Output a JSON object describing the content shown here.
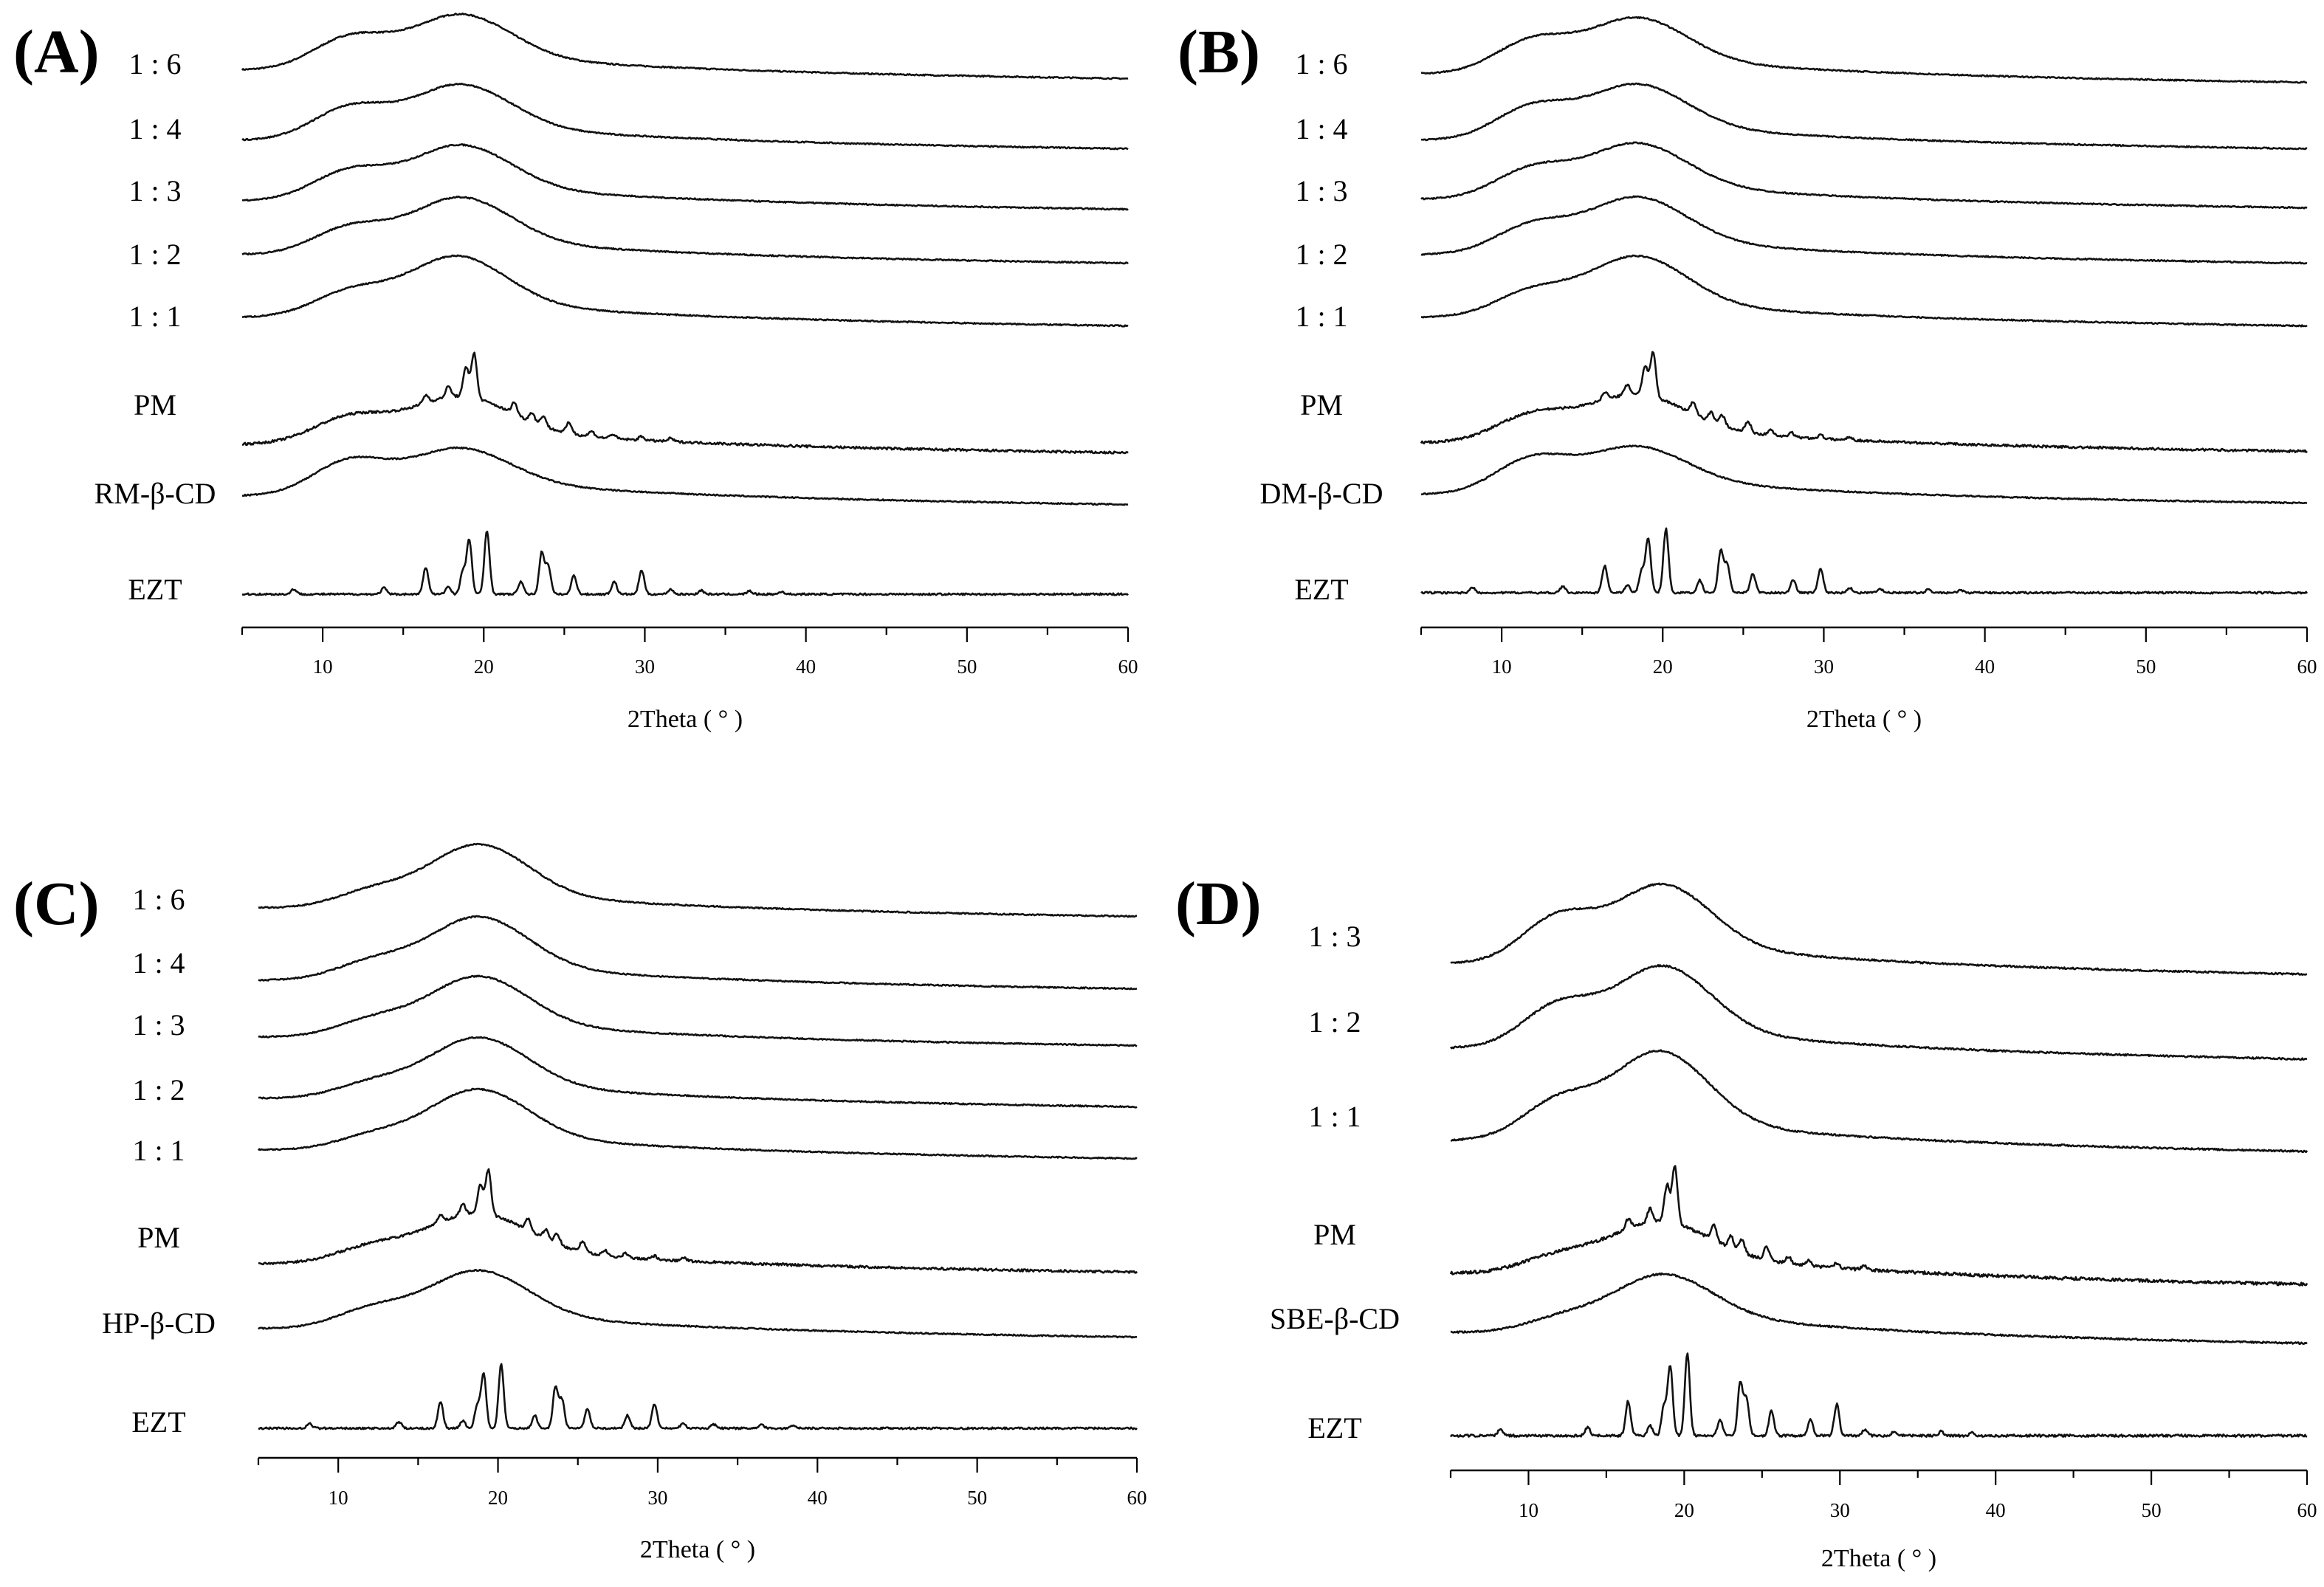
{
  "chart_data": [
    {
      "type": "line",
      "panel": "(A)",
      "xlabel": "2Theta ( ° )",
      "ylabel": "",
      "xlim": [
        5,
        60
      ],
      "xticks": [
        10,
        20,
        30,
        40,
        50,
        60
      ],
      "series": [
        {
          "name": "1 : 6",
          "profile": "amorphous",
          "peaks": [
            {
              "x": 11.6,
              "h": 0.55
            },
            {
              "x": 18.8,
              "h": 0.75
            }
          ]
        },
        {
          "name": "1 : 4",
          "profile": "amorphous",
          "peaks": [
            {
              "x": 11.6,
              "h": 0.55
            },
            {
              "x": 18.8,
              "h": 0.75
            }
          ]
        },
        {
          "name": "1 : 3",
          "profile": "amorphous",
          "peaks": [
            {
              "x": 11.6,
              "h": 0.5
            },
            {
              "x": 18.8,
              "h": 0.75
            }
          ]
        },
        {
          "name": "1 : 2",
          "profile": "amorphous",
          "peaks": [
            {
              "x": 11.6,
              "h": 0.45
            },
            {
              "x": 18.8,
              "h": 0.78
            }
          ]
        },
        {
          "name": "1 : 1",
          "profile": "amorphous",
          "peaks": [
            {
              "x": 11.6,
              "h": 0.42
            },
            {
              "x": 18.5,
              "h": 0.85
            }
          ]
        },
        {
          "name": "PM",
          "profile": "physical-mixture",
          "peaks": [
            {
              "x": 11.6,
              "h": 0.45
            },
            {
              "x": 18.8,
              "h": 0.6
            }
          ]
        },
        {
          "name": "RM-β-CD",
          "profile": "amorphous",
          "peaks": [
            {
              "x": 11.6,
              "h": 0.6
            },
            {
              "x": 18.8,
              "h": 0.6
            }
          ]
        },
        {
          "name": "EZT",
          "profile": "crystalline",
          "peaks": []
        }
      ]
    },
    {
      "type": "line",
      "panel": "(B)",
      "xlabel": "2Theta ( ° )",
      "ylabel": "",
      "xlim": [
        5,
        60
      ],
      "xticks": [
        10,
        20,
        30,
        40,
        50,
        60
      ],
      "series": [
        {
          "name": "1 : 6",
          "profile": "amorphous",
          "peaks": [
            {
              "x": 11.8,
              "h": 0.55
            },
            {
              "x": 18.6,
              "h": 0.75
            }
          ]
        },
        {
          "name": "1 : 4",
          "profile": "amorphous",
          "peaks": [
            {
              "x": 11.8,
              "h": 0.55
            },
            {
              "x": 18.6,
              "h": 0.75
            }
          ]
        },
        {
          "name": "1 : 3",
          "profile": "amorphous",
          "peaks": [
            {
              "x": 11.8,
              "h": 0.5
            },
            {
              "x": 18.6,
              "h": 0.75
            }
          ]
        },
        {
          "name": "1 : 2",
          "profile": "amorphous",
          "peaks": [
            {
              "x": 11.8,
              "h": 0.48
            },
            {
              "x": 18.6,
              "h": 0.78
            }
          ]
        },
        {
          "name": "1 : 1",
          "profile": "amorphous",
          "peaks": [
            {
              "x": 11.8,
              "h": 0.42
            },
            {
              "x": 18.6,
              "h": 0.85
            }
          ]
        },
        {
          "name": "PM",
          "profile": "physical-mixture",
          "peaks": [
            {
              "x": 11.8,
              "h": 0.45
            },
            {
              "x": 18.6,
              "h": 0.6
            }
          ]
        },
        {
          "name": "DM-β-CD",
          "profile": "amorphous",
          "peaks": [
            {
              "x": 11.8,
              "h": 0.6
            },
            {
              "x": 18.6,
              "h": 0.6
            }
          ]
        },
        {
          "name": "EZT",
          "profile": "crystalline",
          "peaks": []
        }
      ]
    },
    {
      "type": "line",
      "panel": "(C)",
      "xlabel": "2Theta ( ° )",
      "ylabel": "",
      "xlim": [
        5,
        60
      ],
      "xticks": [
        10,
        20,
        30,
        40,
        50,
        60
      ],
      "series": [
        {
          "name": "1 : 6",
          "profile": "amorphous",
          "peaks": [
            {
              "x": 12.0,
              "h": 0.25
            },
            {
              "x": 19.0,
              "h": 0.9
            }
          ]
        },
        {
          "name": "1 : 4",
          "profile": "amorphous",
          "peaks": [
            {
              "x": 12.0,
              "h": 0.28
            },
            {
              "x": 19.0,
              "h": 0.9
            }
          ]
        },
        {
          "name": "1 : 3",
          "profile": "amorphous",
          "peaks": [
            {
              "x": 12.0,
              "h": 0.25
            },
            {
              "x": 19.0,
              "h": 0.85
            }
          ]
        },
        {
          "name": "1 : 2",
          "profile": "amorphous",
          "peaks": [
            {
              "x": 12.0,
              "h": 0.22
            },
            {
              "x": 19.0,
              "h": 0.85
            }
          ]
        },
        {
          "name": "1 : 1",
          "profile": "amorphous",
          "peaks": [
            {
              "x": 12.0,
              "h": 0.2
            },
            {
              "x": 19.0,
              "h": 0.85
            }
          ]
        },
        {
          "name": "PM",
          "profile": "physical-mixture",
          "peaks": [
            {
              "x": 12.0,
              "h": 0.25
            },
            {
              "x": 19.0,
              "h": 0.65
            }
          ]
        },
        {
          "name": "HP-β-CD",
          "profile": "amorphous",
          "peaks": [
            {
              "x": 12.0,
              "h": 0.3
            },
            {
              "x": 19.0,
              "h": 0.8
            }
          ]
        },
        {
          "name": "EZT",
          "profile": "crystalline",
          "peaks": []
        }
      ]
    },
    {
      "type": "line",
      "panel": "(D)",
      "xlabel": "2Theta ( ° )",
      "ylabel": "",
      "xlim": [
        5,
        60
      ],
      "xticks": [
        10,
        20,
        30,
        40,
        50,
        60
      ],
      "series": [
        {
          "name": "1 : 3",
          "profile": "amorphous",
          "peaks": [
            {
              "x": 11.8,
              "h": 0.6
            },
            {
              "x": 18.8,
              "h": 0.85
            }
          ]
        },
        {
          "name": "1 : 2",
          "profile": "amorphous",
          "peaks": [
            {
              "x": 11.8,
              "h": 0.55
            },
            {
              "x": 18.8,
              "h": 0.9
            }
          ]
        },
        {
          "name": "1 : 1",
          "profile": "amorphous",
          "peaks": [
            {
              "x": 11.8,
              "h": 0.5
            },
            {
              "x": 18.6,
              "h": 1.0
            }
          ]
        },
        {
          "name": "PM",
          "profile": "physical-mixture",
          "peaks": [
            {
              "x": 11.8,
              "h": 0.2
            },
            {
              "x": 18.8,
              "h": 0.45
            }
          ]
        },
        {
          "name": "SBE-β-CD",
          "profile": "amorphous",
          "peaks": [
            {
              "x": 12.0,
              "h": 0.15
            },
            {
              "x": 19.0,
              "h": 0.55
            }
          ]
        },
        {
          "name": "EZT",
          "profile": "crystalline",
          "peaks": []
        }
      ]
    }
  ],
  "ezt_crystalline_peaks": [
    {
      "x": 8.2,
      "h": 0.08
    },
    {
      "x": 13.8,
      "h": 0.1
    },
    {
      "x": 16.4,
      "h": 0.42
    },
    {
      "x": 17.8,
      "h": 0.12
    },
    {
      "x": 18.7,
      "h": 0.35
    },
    {
      "x": 19.1,
      "h": 0.85
    },
    {
      "x": 20.2,
      "h": 1.0
    },
    {
      "x": 22.3,
      "h": 0.2
    },
    {
      "x": 23.6,
      "h": 0.65
    },
    {
      "x": 24.0,
      "h": 0.45
    },
    {
      "x": 25.6,
      "h": 0.3
    },
    {
      "x": 28.1,
      "h": 0.2
    },
    {
      "x": 29.8,
      "h": 0.38
    },
    {
      "x": 31.6,
      "h": 0.08
    },
    {
      "x": 33.5,
      "h": 0.06
    },
    {
      "x": 36.5,
      "h": 0.05
    },
    {
      "x": 38.5,
      "h": 0.04
    }
  ],
  "pm_sharp_peaks": [
    {
      "x": 16.4,
      "h": 0.15
    },
    {
      "x": 17.8,
      "h": 0.2
    },
    {
      "x": 18.9,
      "h": 0.55
    },
    {
      "x": 19.4,
      "h": 0.85
    },
    {
      "x": 21.9,
      "h": 0.22
    },
    {
      "x": 23.0,
      "h": 0.18
    },
    {
      "x": 23.7,
      "h": 0.2
    },
    {
      "x": 25.3,
      "h": 0.2
    },
    {
      "x": 26.7,
      "h": 0.1
    },
    {
      "x": 28.0,
      "h": 0.08
    },
    {
      "x": 29.8,
      "h": 0.07
    },
    {
      "x": 31.6,
      "h": 0.06
    }
  ]
}
